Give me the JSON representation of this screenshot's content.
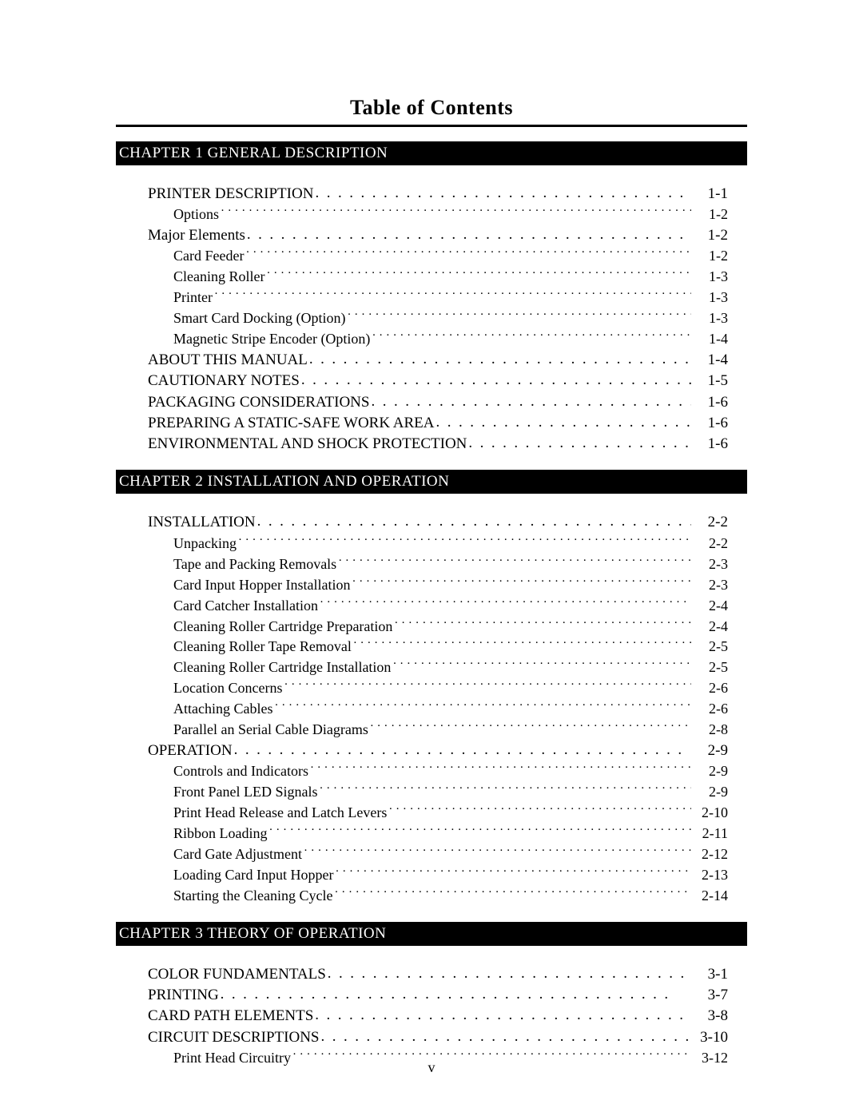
{
  "title": "Table of Contents",
  "footer": "v",
  "sections": [
    {
      "heading": "CHAPTER 1 GENERAL DESCRIPTION",
      "entries": [
        {
          "level": 1,
          "label": "PRINTER DESCRIPTION",
          "page": "1-1"
        },
        {
          "level": 2,
          "label": "Options",
          "page": "1-2"
        },
        {
          "level": 1,
          "label": "Major Elements",
          "page": "1-2"
        },
        {
          "level": 2,
          "label": "Card Feeder",
          "page": "1-2"
        },
        {
          "level": 2,
          "label": "Cleaning Roller",
          "page": "1-3"
        },
        {
          "level": 2,
          "label": "Printer",
          "page": "1-3"
        },
        {
          "level": 2,
          "label": "Smart Card Docking (Option)",
          "page": "1-3"
        },
        {
          "level": 2,
          "label": "Magnetic Stripe Encoder (Option)",
          "page": "1-4"
        },
        {
          "level": 1,
          "label": "ABOUT THIS MANUAL",
          "page": "1-4"
        },
        {
          "level": 1,
          "label": "CAUTIONARY NOTES",
          "page": "1-5"
        },
        {
          "level": 1,
          "label": "PACKAGING CONSIDERATIONS",
          "page": "1-6"
        },
        {
          "level": 1,
          "label": "PREPARING A STATIC-SAFE WORK AREA",
          "page": "1-6"
        },
        {
          "level": 1,
          "label": "ENVIRONMENTAL AND SHOCK PROTECTION",
          "page": "1-6"
        }
      ]
    },
    {
      "heading": "CHAPTER 2 INSTALLATION AND OPERATION",
      "entries": [
        {
          "level": 1,
          "label": "INSTALLATION",
          "page": "2-2"
        },
        {
          "level": 2,
          "label": "Unpacking",
          "page": "2-2"
        },
        {
          "level": 2,
          "label": "Tape and Packing Removals",
          "page": "2-3"
        },
        {
          "level": 2,
          "label": "Card Input Hopper Installation",
          "page": "2-3"
        },
        {
          "level": 2,
          "label": "Card Catcher Installation",
          "page": "2-4"
        },
        {
          "level": 2,
          "label": "Cleaning Roller Cartridge Preparation",
          "page": "2-4"
        },
        {
          "level": 2,
          "label": "Cleaning Roller Tape Removal",
          "page": "2-5"
        },
        {
          "level": 2,
          "label": "Cleaning Roller Cartridge Installation",
          "page": "2-5"
        },
        {
          "level": 2,
          "label": "Location Concerns",
          "page": "2-6"
        },
        {
          "level": 2,
          "label": "Attaching Cables",
          "page": "2-6"
        },
        {
          "level": 2,
          "label": "Parallel an Serial Cable Diagrams",
          "page": "2-8"
        },
        {
          "level": 1,
          "label": "OPERATION",
          "page": "2-9"
        },
        {
          "level": 2,
          "label": "Controls and Indicators",
          "page": "2-9"
        },
        {
          "level": 2,
          "label": "Front Panel LED Signals",
          "page": "2-9"
        },
        {
          "level": 2,
          "label": "Print Head Release and Latch Levers",
          "page": "2-10"
        },
        {
          "level": 2,
          "label": "Ribbon Loading",
          "page": "2-11"
        },
        {
          "level": 2,
          "label": "Card Gate Adjustment",
          "page": "2-12"
        },
        {
          "level": 2,
          "label": "Loading Card Input Hopper",
          "page": "2-13"
        },
        {
          "level": 2,
          "label": "Starting the Cleaning Cycle",
          "page": "2-14"
        }
      ]
    },
    {
      "heading": "CHAPTER 3 THEORY OF OPERATION",
      "entries": [
        {
          "level": 1,
          "label": "COLOR FUNDAMENTALS",
          "page": "3-1"
        },
        {
          "level": 1,
          "label": "PRINTING",
          "page": "3-7"
        },
        {
          "level": 1,
          "label": "CARD PATH ELEMENTS",
          "page": "3-8"
        },
        {
          "level": 1,
          "label": "CIRCUIT DESCRIPTIONS",
          "page": "3-10"
        },
        {
          "level": 2,
          "label": "Print Head Circuitry",
          "page": "3-12"
        }
      ]
    }
  ]
}
